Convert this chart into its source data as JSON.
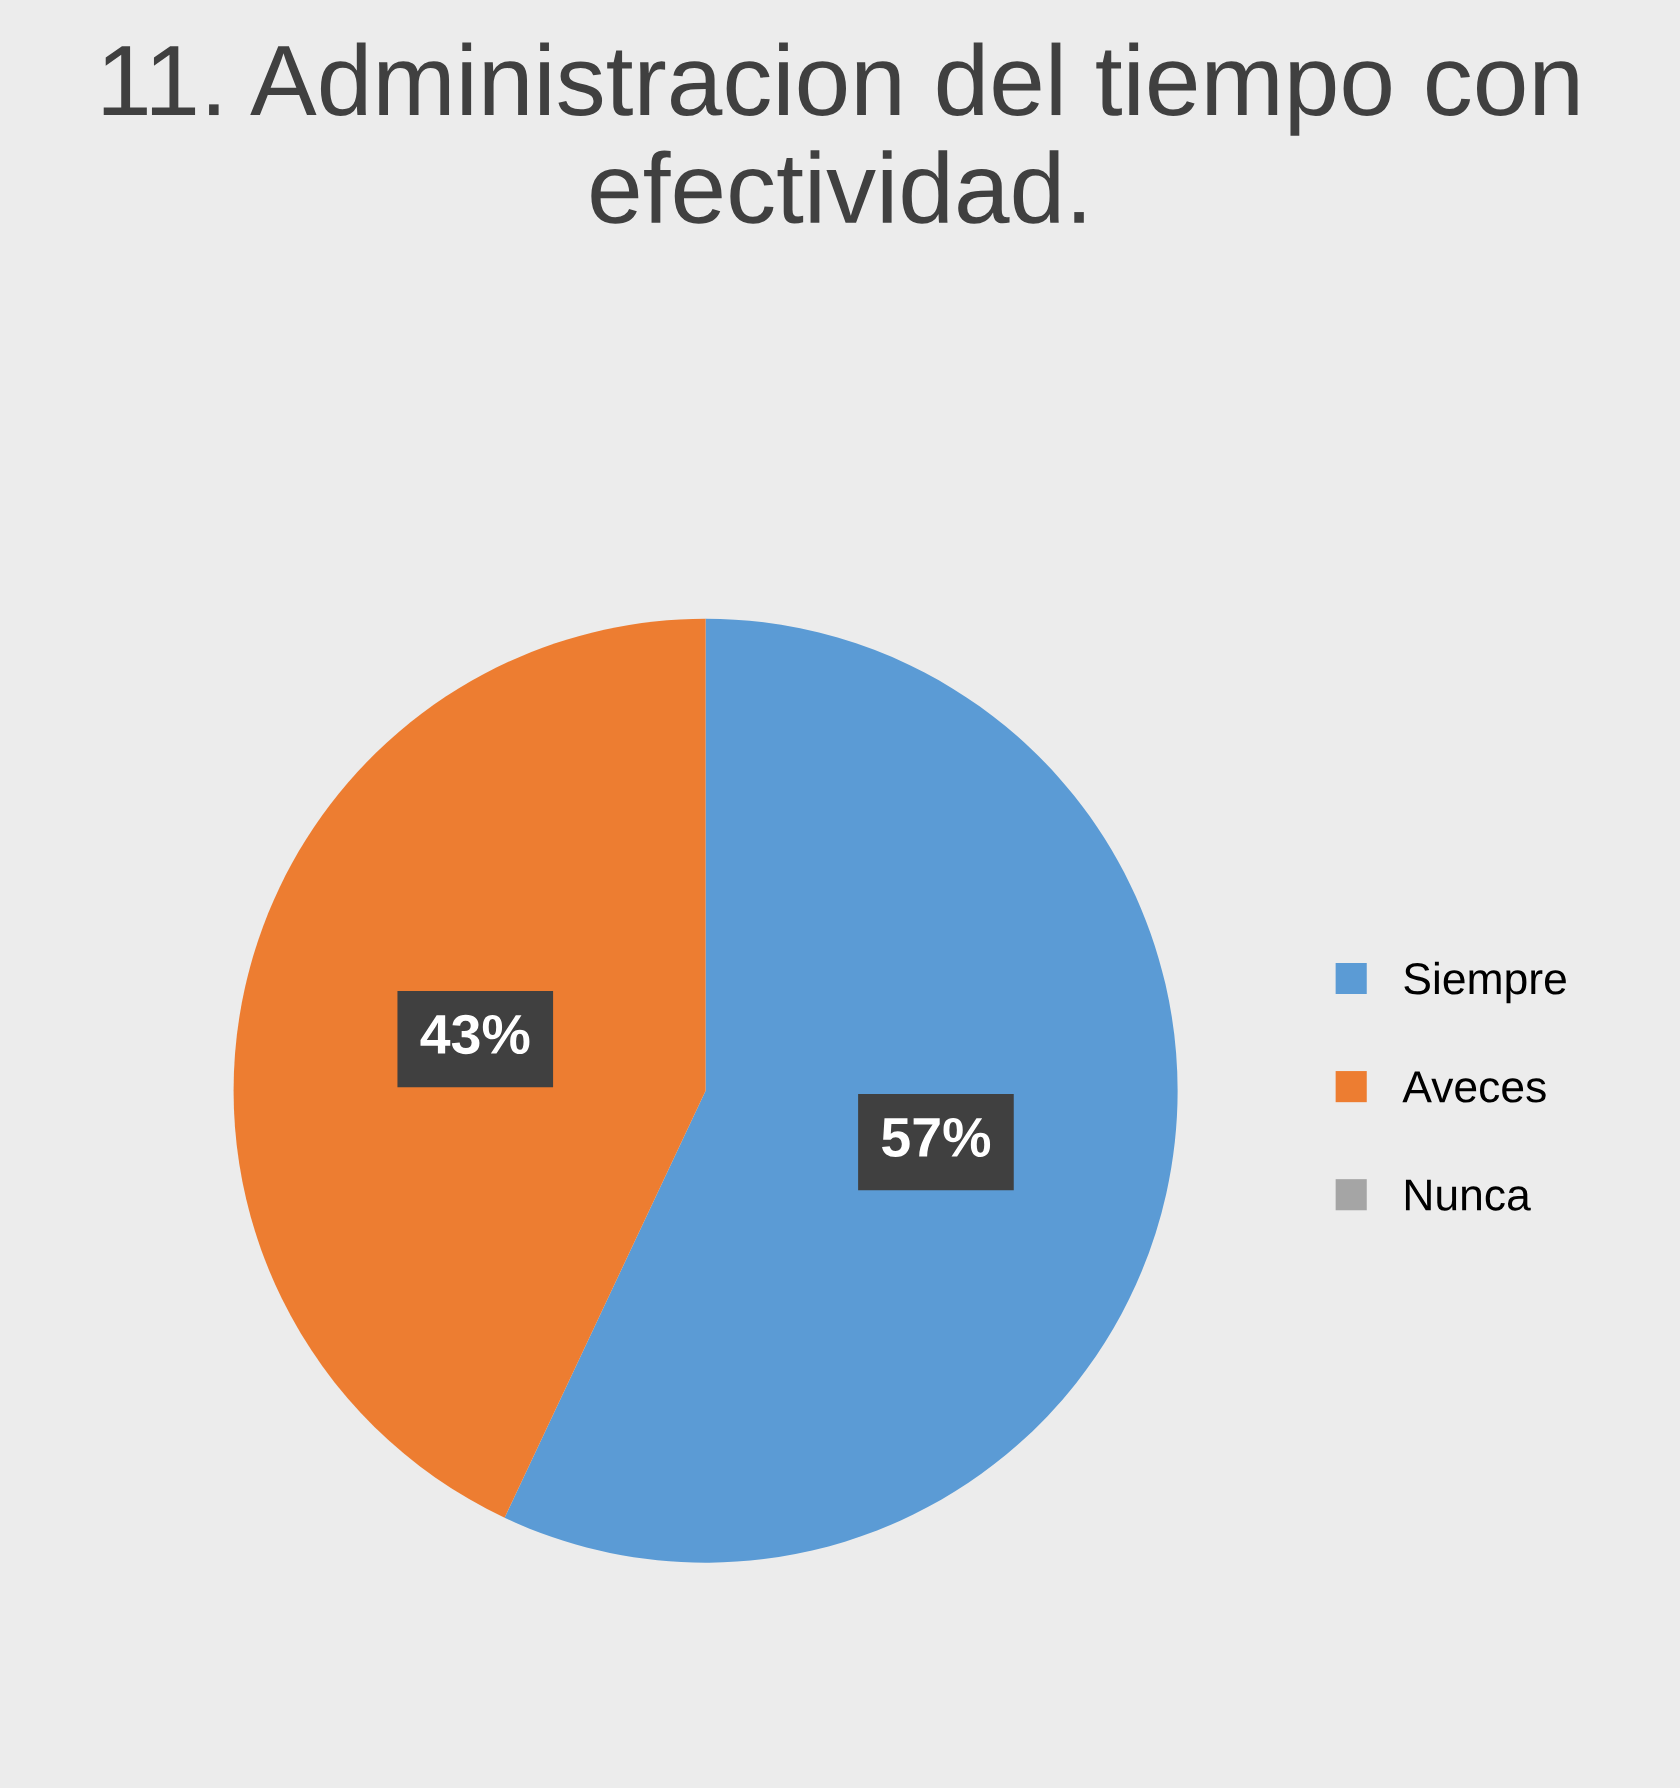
{
  "chart_data": {
    "type": "pie",
    "title": "11. Administracion del tiempo con efectividad.",
    "categories": [
      "Siempre",
      "Aveces",
      "Nunca"
    ],
    "values": [
      57,
      43,
      0
    ],
    "colors": [
      "#5b9bd5",
      "#ed7d31",
      "#a5a5a5"
    ],
    "value_labels": [
      "57%",
      "43%",
      null
    ],
    "legend": "right"
  }
}
